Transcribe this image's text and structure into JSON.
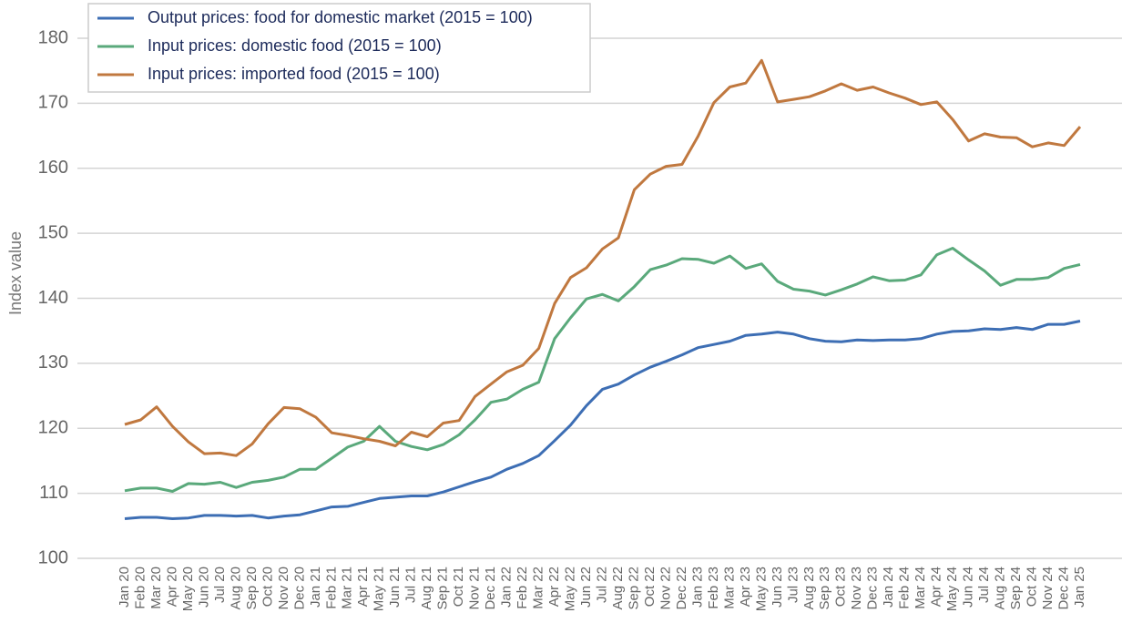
{
  "chart_data": {
    "type": "line",
    "y_label": "Index value",
    "categories": [
      "Jan 20",
      "Feb 20",
      "Mar 20",
      "Apr 20",
      "May 20",
      "Jun 20",
      "Jul 20",
      "Aug 20",
      "Sep 20",
      "Oct 20",
      "Nov 20",
      "Dec 20",
      "Jan 21",
      "Feb 21",
      "Mar 21",
      "Apr 21",
      "May 21",
      "Jun 21",
      "Jul 21",
      "Aug 21",
      "Sep 21",
      "Oct 21",
      "Nov 21",
      "Dec 21",
      "Jan 22",
      "Feb 22",
      "Mar 22",
      "Apr 22",
      "May 22",
      "Jun 22",
      "Jul 22",
      "Aug 22",
      "Sep 22",
      "Oct 22",
      "Nov 22",
      "Dec 22",
      "Jan 23",
      "Feb 23",
      "Mar 23",
      "Apr 23",
      "May 23",
      "Jun 23",
      "Jul 23",
      "Aug 23",
      "Sep 23",
      "Oct 23",
      "Nov 23",
      "Dec 23",
      "Jan 24",
      "Feb 24",
      "Mar 24",
      "Apr 24",
      "May 24",
      "Jun 24",
      "Jul 24",
      "Aug 24",
      "Sep 24",
      "Oct 24",
      "Nov 24",
      "Dec 24",
      "Jan 25"
    ],
    "series": [
      {
        "name": "Output prices: food for domestic market (2015 = 100)",
        "color": "#3d6eb4",
        "values": [
          106.1,
          106.3,
          106.3,
          106.1,
          106.2,
          106.6,
          106.6,
          106.5,
          106.6,
          106.2,
          106.5,
          106.7,
          107.3,
          107.9,
          108.0,
          108.6,
          109.2,
          109.4,
          109.6,
          109.6,
          110.2,
          111.0,
          111.8,
          112.5,
          113.7,
          114.6,
          115.8,
          118.1,
          120.5,
          123.5,
          126.0,
          126.8,
          128.2,
          129.4,
          130.3,
          131.3,
          132.4,
          132.9,
          133.4,
          134.3,
          134.5,
          134.8,
          134.5,
          133.8,
          133.4,
          133.3,
          133.6,
          133.5,
          133.6,
          133.6,
          133.8,
          134.5,
          134.9,
          135.0,
          135.3,
          135.2,
          135.5,
          135.2,
          136.0,
          136.0,
          136.5
        ]
      },
      {
        "name": "Input prices: domestic food (2015 = 100)",
        "color": "#5aa97b",
        "values": [
          110.4,
          110.8,
          110.8,
          110.3,
          111.5,
          111.4,
          111.7,
          110.9,
          111.7,
          112.0,
          112.5,
          113.7,
          113.7,
          115.4,
          117.1,
          118.0,
          120.3,
          118.0,
          117.2,
          116.7,
          117.5,
          119.0,
          121.3,
          124.0,
          124.5,
          126.0,
          127.1,
          133.8,
          137.0,
          139.9,
          140.6,
          139.6,
          141.8,
          144.4,
          145.1,
          146.1,
          146.0,
          145.4,
          146.5,
          144.6,
          145.3,
          142.6,
          141.4,
          141.1,
          140.5,
          141.3,
          142.2,
          143.3,
          142.7,
          142.8,
          143.6,
          146.7,
          147.7,
          145.9,
          144.2,
          142.0,
          142.9,
          142.9,
          143.2,
          144.6,
          145.2
        ]
      },
      {
        "name": "Input prices: imported food (2015 = 100)",
        "color": "#c0783f",
        "values": [
          120.6,
          121.3,
          123.3,
          120.3,
          117.9,
          116.1,
          116.2,
          115.8,
          117.6,
          120.7,
          123.2,
          123.0,
          121.7,
          119.3,
          118.9,
          118.4,
          118.0,
          117.3,
          119.4,
          118.7,
          120.8,
          121.2,
          124.9,
          126.8,
          128.7,
          129.7,
          132.3,
          139.2,
          143.2,
          144.7,
          147.6,
          149.3,
          156.7,
          159.1,
          160.3,
          160.6,
          164.9,
          170.1,
          172.5,
          173.1,
          176.6,
          170.2,
          170.6,
          171.0,
          171.9,
          173.0,
          172.0,
          172.5,
          171.6,
          170.8,
          169.8,
          170.2,
          167.5,
          164.2,
          165.3,
          164.8,
          164.7,
          163.3,
          163.9,
          163.5,
          166.4
        ]
      }
    ],
    "ylim": [
      100,
      180
    ],
    "yticks": [
      100,
      110,
      120,
      130,
      140,
      150,
      160,
      170,
      180
    ],
    "grid": true,
    "legend": "upper left"
  }
}
